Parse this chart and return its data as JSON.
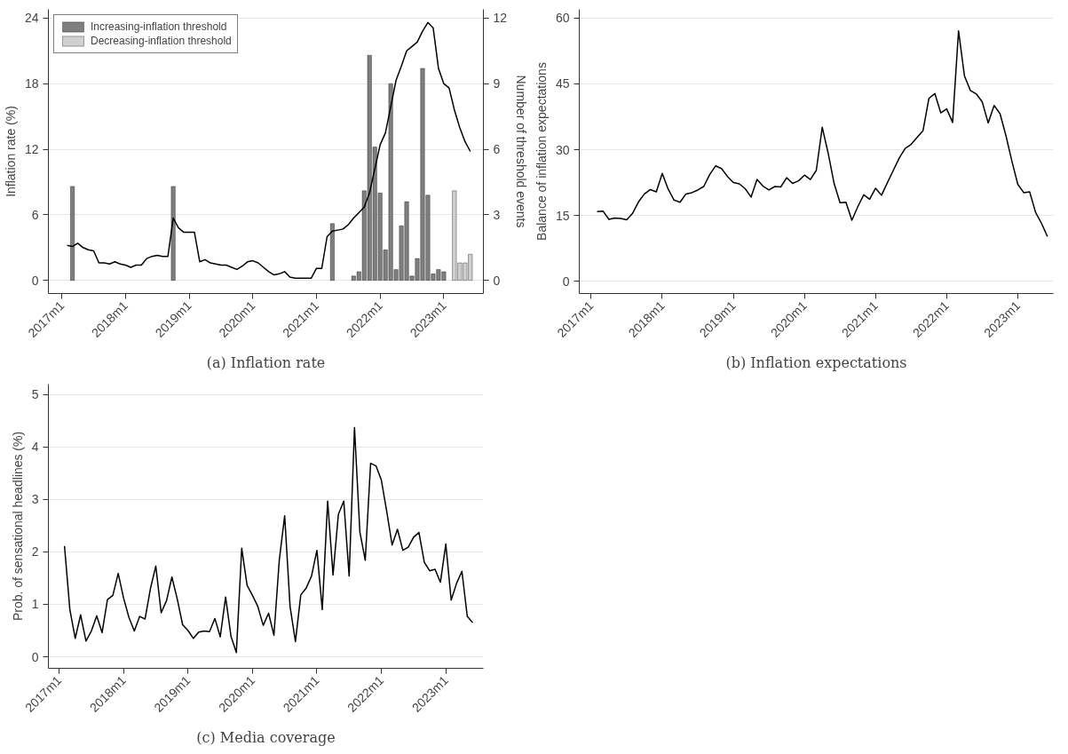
{
  "chart_data": [
    {
      "type": "line",
      "title": "(a) Inflation rate",
      "ylabel": "Inflation rate (%)",
      "y2label": "Number of threshold events",
      "grid": "y",
      "legend": "top left",
      "x": [
        "2017-02",
        "2017-03",
        "2017-04",
        "2017-05",
        "2017-06",
        "2017-07",
        "2017-08",
        "2017-09",
        "2017-10",
        "2017-11",
        "2017-12",
        "2018-01",
        "2018-02",
        "2018-03",
        "2018-04",
        "2018-05",
        "2018-06",
        "2018-07",
        "2018-08",
        "2018-09",
        "2018-10",
        "2018-11",
        "2018-12",
        "2019-01",
        "2019-02",
        "2019-03",
        "2019-04",
        "2019-05",
        "2019-06",
        "2019-07",
        "2019-08",
        "2019-09",
        "2019-10",
        "2019-11",
        "2019-12",
        "2020-01",
        "2020-02",
        "2020-03",
        "2020-04",
        "2020-05",
        "2020-06",
        "2020-07",
        "2020-08",
        "2020-09",
        "2020-10",
        "2020-11",
        "2020-12",
        "2021-01",
        "2021-02",
        "2021-03",
        "2021-04",
        "2021-05",
        "2021-06",
        "2021-07",
        "2021-08",
        "2021-09",
        "2021-10",
        "2021-11",
        "2021-12",
        "2022-01",
        "2022-02",
        "2022-03",
        "2022-04",
        "2022-05",
        "2022-06",
        "2022-07",
        "2022-08",
        "2022-09",
        "2022-10",
        "2022-11",
        "2022-12",
        "2023-01",
        "2023-02",
        "2023-03",
        "2023-04",
        "2023-05",
        "2023-06"
      ],
      "xlim": [
        "2016-10-15",
        "2023-08-15"
      ],
      "xticks": [
        {
          "value": "2017-01",
          "label": "2017m1"
        },
        {
          "value": "2018-01",
          "label": "2018m1"
        },
        {
          "value": "2019-01",
          "label": "2019m1"
        },
        {
          "value": "2020-01",
          "label": "2020m1"
        },
        {
          "value": "2021-01",
          "label": "2021m1"
        },
        {
          "value": "2022-01",
          "label": "2022m1"
        },
        {
          "value": "2023-01",
          "label": "2023m1"
        }
      ],
      "ylim": [
        -1.2,
        24.8
      ],
      "yticks": [
        0,
        6,
        12,
        18,
        24
      ],
      "y2lim": [
        -0.6,
        12.4
      ],
      "y2ticks": [
        0,
        3,
        6,
        9,
        12
      ],
      "series": [
        {
          "type": "line",
          "color": "#000000",
          "values": [
            3.2,
            3.1,
            3.4,
            3.0,
            2.8,
            2.7,
            1.6,
            1.6,
            1.5,
            1.7,
            1.5,
            1.4,
            1.2,
            1.4,
            1.4,
            2.0,
            2.2,
            2.3,
            2.2,
            2.2,
            5.7,
            4.8,
            4.4,
            4.4,
            4.4,
            1.7,
            1.9,
            1.6,
            1.5,
            1.4,
            1.4,
            1.2,
            1.0,
            1.3,
            1.7,
            1.8,
            1.6,
            1.2,
            0.8,
            0.5,
            0.6,
            0.8,
            0.3,
            0.2,
            0.2,
            0.2,
            0.2,
            1.1,
            1.1,
            4.0,
            4.5,
            4.6,
            4.7,
            5.1,
            5.7,
            6.2,
            6.7,
            8.0,
            10.2,
            12.4,
            13.5,
            15.9,
            18.3,
            19.6,
            21.0,
            21.4,
            21.8,
            22.8,
            23.6,
            23.1,
            19.4,
            18.0,
            17.6,
            15.6,
            14.0,
            12.7,
            11.8
          ]
        },
        {
          "type": "bar",
          "axis": "y2",
          "name": "Increasing-inflation threshold",
          "color": "#7f7f7f",
          "x": [
            "2017-03",
            "2018-10",
            "2021-04",
            "2021-08",
            "2021-09",
            "2021-10",
            "2021-11",
            "2021-12",
            "2022-01",
            "2022-02",
            "2022-03",
            "2022-04",
            "2022-05",
            "2022-06",
            "2022-07",
            "2022-08",
            "2022-09",
            "2022-10",
            "2022-11",
            "2022-12",
            "2023-01"
          ],
          "values": [
            4.3,
            4.3,
            2.6,
            0.2,
            0.4,
            4.1,
            10.3,
            6.1,
            4.0,
            1.4,
            9.0,
            0.5,
            2.5,
            3.6,
            0.2,
            1.0,
            9.7,
            3.9,
            0.3,
            0.5,
            0.4
          ]
        },
        {
          "type": "bar",
          "axis": "y2",
          "name": "Decreasing-inflation threshold",
          "color": "#d0d0d0",
          "x": [
            "2023-03",
            "2023-04",
            "2023-05",
            "2023-06"
          ],
          "values": [
            4.1,
            0.8,
            0.8,
            1.2
          ]
        }
      ]
    },
    {
      "type": "line",
      "title": "(b) Inflation expectations",
      "ylabel": "Balance of inflation expectations",
      "grid": "y",
      "x": [
        "2017-02",
        "2017-03",
        "2017-04",
        "2017-05",
        "2017-06",
        "2017-07",
        "2017-08",
        "2017-09",
        "2017-10",
        "2017-11",
        "2017-12",
        "2018-01",
        "2018-02",
        "2018-03",
        "2018-04",
        "2018-05",
        "2018-06",
        "2018-07",
        "2018-08",
        "2018-09",
        "2018-10",
        "2018-11",
        "2018-12",
        "2019-01",
        "2019-02",
        "2019-03",
        "2019-04",
        "2019-05",
        "2019-06",
        "2019-07",
        "2019-08",
        "2019-09",
        "2019-10",
        "2019-11",
        "2019-12",
        "2020-01",
        "2020-02",
        "2020-03",
        "2020-04",
        "2020-05",
        "2020-06",
        "2020-07",
        "2020-08",
        "2020-09",
        "2020-10",
        "2020-11",
        "2020-12",
        "2021-01",
        "2021-02",
        "2021-03",
        "2021-04",
        "2021-05",
        "2021-06",
        "2021-07",
        "2021-08",
        "2021-09",
        "2021-10",
        "2021-11",
        "2021-12",
        "2022-01",
        "2022-02",
        "2022-03",
        "2022-04",
        "2022-05",
        "2022-06",
        "2022-07",
        "2022-08",
        "2022-09",
        "2022-10",
        "2022-11",
        "2022-12",
        "2023-01",
        "2023-02",
        "2023-03",
        "2023-04",
        "2023-05",
        "2023-06"
      ],
      "xlim": [
        "2016-11-01",
        "2023-07-01"
      ],
      "xticks": [
        {
          "value": "2017-01",
          "label": "2017m1"
        },
        {
          "value": "2018-01",
          "label": "2018m1"
        },
        {
          "value": "2019-01",
          "label": "2019m1"
        },
        {
          "value": "2020-01",
          "label": "2020m1"
        },
        {
          "value": "2021-01",
          "label": "2021m1"
        },
        {
          "value": "2022-01",
          "label": "2022m1"
        },
        {
          "value": "2023-01",
          "label": "2023m1"
        }
      ],
      "ylim": [
        -2.8,
        62
      ],
      "yticks": [
        0,
        15,
        30,
        45,
        60
      ],
      "series": [
        {
          "color": "#000000",
          "values": [
            15.9,
            16.0,
            14.1,
            14.4,
            14.3,
            14.0,
            15.5,
            18.1,
            19.9,
            20.9,
            20.4,
            24.6,
            21.0,
            18.5,
            18.0,
            19.9,
            20.2,
            20.8,
            21.6,
            24.3,
            26.3,
            25.7,
            23.9,
            22.5,
            22.2,
            21.1,
            19.2,
            23.2,
            21.7,
            20.8,
            21.6,
            21.5,
            23.6,
            22.3,
            22.9,
            24.2,
            23.2,
            25.3,
            35.1,
            29.2,
            22.3,
            17.9,
            18.0,
            13.9,
            17.0,
            19.7,
            18.7,
            21.2,
            19.6,
            22.5,
            25.3,
            28.1,
            30.3,
            31.2,
            32.8,
            34.3,
            41.7,
            42.8,
            38.4,
            39.3,
            36.2,
            57.1,
            46.8,
            43.5,
            42.7,
            40.9,
            36.1,
            40.1,
            38.2,
            33.2,
            27.4,
            22.1,
            20.2,
            20.4,
            15.7,
            13.2,
            10.2
          ]
        }
      ]
    },
    {
      "type": "line",
      "title": "(c) Media coverage",
      "ylabel": "Prob. of sensational headlines (%)",
      "grid": "y",
      "x": [
        "2017-02",
        "2017-03",
        "2017-04",
        "2017-05",
        "2017-06",
        "2017-07",
        "2017-08",
        "2017-09",
        "2017-10",
        "2017-11",
        "2017-12",
        "2018-01",
        "2018-02",
        "2018-03",
        "2018-04",
        "2018-05",
        "2018-06",
        "2018-07",
        "2018-08",
        "2018-09",
        "2018-10",
        "2018-11",
        "2018-12",
        "2019-01",
        "2019-02",
        "2019-03",
        "2019-04",
        "2019-05",
        "2019-06",
        "2019-07",
        "2019-08",
        "2019-09",
        "2019-10",
        "2019-11",
        "2019-12",
        "2020-01",
        "2020-02",
        "2020-03",
        "2020-04",
        "2020-05",
        "2020-06",
        "2020-07",
        "2020-08",
        "2020-09",
        "2020-10",
        "2020-11",
        "2020-12",
        "2021-01",
        "2021-02",
        "2021-03",
        "2021-04",
        "2021-05",
        "2021-06",
        "2021-07",
        "2021-08",
        "2021-09",
        "2021-10",
        "2021-11",
        "2021-12",
        "2022-01",
        "2022-02",
        "2022-03",
        "2022-04",
        "2022-05",
        "2022-06",
        "2022-07",
        "2022-08",
        "2022-09",
        "2022-10",
        "2022-11",
        "2022-12",
        "2023-01",
        "2023-02",
        "2023-03",
        "2023-04",
        "2023-05",
        "2023-06"
      ],
      "xlim": [
        "2016-11-01",
        "2023-08-01"
      ],
      "xticks": [
        {
          "value": "2017-01",
          "label": "2017m1"
        },
        {
          "value": "2018-01",
          "label": "2018m1"
        },
        {
          "value": "2019-01",
          "label": "2019m1"
        },
        {
          "value": "2020-01",
          "label": "2020m1"
        },
        {
          "value": "2021-01",
          "label": "2021m1"
        },
        {
          "value": "2022-01",
          "label": "2022m1"
        },
        {
          "value": "2023-01",
          "label": "2023m1"
        }
      ],
      "ylim": [
        -0.22,
        5.2
      ],
      "yticks": [
        0,
        1,
        2,
        3,
        4,
        5
      ],
      "series": [
        {
          "color": "#000000",
          "values": [
            2.11,
            0.9,
            0.35,
            0.8,
            0.3,
            0.49,
            0.78,
            0.46,
            1.09,
            1.17,
            1.59,
            1.12,
            0.75,
            0.49,
            0.77,
            0.72,
            1.3,
            1.73,
            0.84,
            1.07,
            1.52,
            1.1,
            0.61,
            0.5,
            0.35,
            0.47,
            0.49,
            0.48,
            0.73,
            0.38,
            1.14,
            0.39,
            0.08,
            2.07,
            1.36,
            1.17,
            0.96,
            0.6,
            0.83,
            0.41,
            1.85,
            2.69,
            0.96,
            0.29,
            1.18,
            1.31,
            1.54,
            2.03,
            0.9,
            2.97,
            1.56,
            2.72,
            2.97,
            1.54,
            4.37,
            2.38,
            1.84,
            3.69,
            3.64,
            3.37,
            2.77,
            2.13,
            2.43,
            2.03,
            2.09,
            2.28,
            2.37,
            1.8,
            1.64,
            1.67,
            1.42,
            2.15,
            1.08,
            1.4,
            1.63,
            0.77,
            0.65
          ]
        }
      ]
    }
  ]
}
